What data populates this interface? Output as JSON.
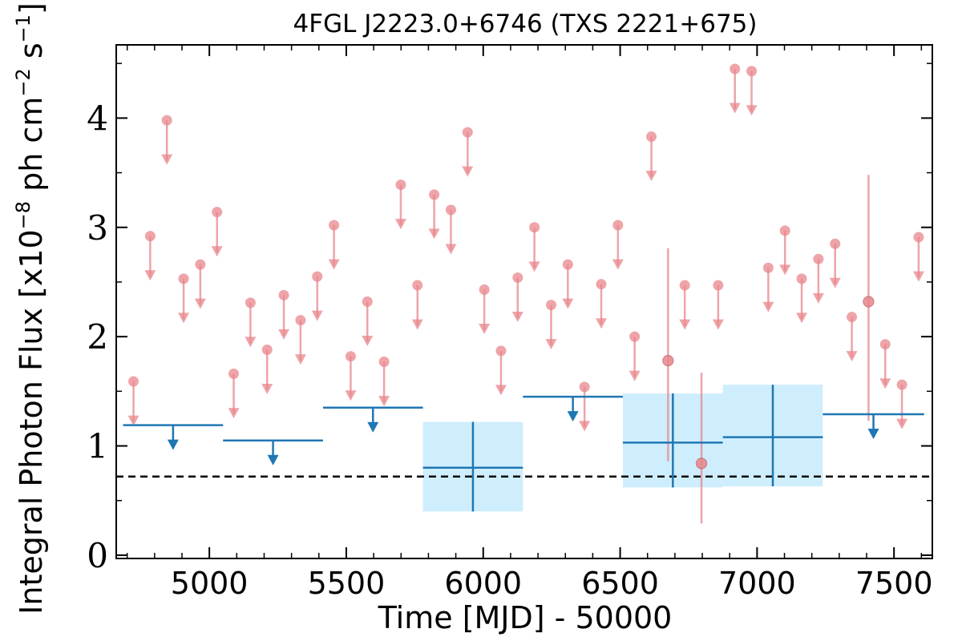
{
  "chart_data": {
    "type": "scatter",
    "title": "4FGL J2223.0+6746 (TXS 2221+675)",
    "xlabel": "Time [MJD] - 50000",
    "ylabel": "Integral Photon Flux [x10",
    "ylabel_exp1": "−8",
    "ylabel_mid": " ph cm",
    "ylabel_exp2": "−2",
    "ylabel_mid2": " s",
    "ylabel_exp3": "−1",
    "ylabel_end": "]",
    "xlim": [
      4660,
      7640
    ],
    "ylim": [
      -0.03,
      4.67
    ],
    "xticks": [
      5000,
      5500,
      6000,
      6500,
      7000,
      7500
    ],
    "yticks": [
      0,
      1,
      2,
      3,
      4
    ],
    "reference_line": {
      "y": 0.72,
      "style": "dashed",
      "color": "#000000"
    },
    "series": [
      {
        "color": "#e8868b",
        "upper_limits": [
          {
            "x": 4723,
            "y": 1.59
          },
          {
            "x": 4784,
            "y": 2.92
          },
          {
            "x": 4845,
            "y": 3.98
          },
          {
            "x": 4906,
            "y": 2.53
          },
          {
            "x": 4967,
            "y": 2.66
          },
          {
            "x": 5028,
            "y": 3.14
          },
          {
            "x": 5089,
            "y": 1.66
          },
          {
            "x": 5150,
            "y": 2.31
          },
          {
            "x": 5211,
            "y": 1.88
          },
          {
            "x": 5272,
            "y": 2.38
          },
          {
            "x": 5333,
            "y": 2.15
          },
          {
            "x": 5394,
            "y": 2.55
          },
          {
            "x": 5455,
            "y": 3.02
          },
          {
            "x": 5516,
            "y": 1.82
          },
          {
            "x": 5577,
            "y": 2.32
          },
          {
            "x": 5638,
            "y": 1.77
          },
          {
            "x": 5699,
            "y": 3.39
          },
          {
            "x": 5760,
            "y": 2.47
          },
          {
            "x": 5821,
            "y": 3.3
          },
          {
            "x": 5882,
            "y": 3.16
          },
          {
            "x": 5943,
            "y": 3.87
          },
          {
            "x": 6004,
            "y": 2.43
          },
          {
            "x": 6065,
            "y": 1.87
          },
          {
            "x": 6126,
            "y": 2.54
          },
          {
            "x": 6187,
            "y": 3.0
          },
          {
            "x": 6248,
            "y": 2.29
          },
          {
            "x": 6309,
            "y": 2.66
          },
          {
            "x": 6370,
            "y": 1.54
          },
          {
            "x": 6431,
            "y": 2.48
          },
          {
            "x": 6492,
            "y": 3.02
          },
          {
            "x": 6553,
            "y": 2.0
          },
          {
            "x": 6614,
            "y": 3.83
          },
          {
            "x": 6736,
            "y": 2.47
          },
          {
            "x": 6858,
            "y": 2.47
          },
          {
            "x": 6919,
            "y": 4.45
          },
          {
            "x": 6980,
            "y": 4.43
          },
          {
            "x": 7041,
            "y": 2.63
          },
          {
            "x": 7102,
            "y": 2.97
          },
          {
            "x": 7163,
            "y": 2.53
          },
          {
            "x": 7224,
            "y": 2.71
          },
          {
            "x": 7285,
            "y": 2.85
          },
          {
            "x": 7346,
            "y": 2.18
          },
          {
            "x": 7468,
            "y": 1.93
          },
          {
            "x": 7529,
            "y": 1.56
          },
          {
            "x": 7590,
            "y": 2.91
          }
        ],
        "detections": [
          {
            "x": 6675,
            "y": 1.78,
            "ylo": 0.86,
            "yhi": 2.81
          },
          {
            "x": 6797,
            "y": 0.84,
            "ylo": 0.29,
            "yhi": 1.67
          },
          {
            "x": 7407,
            "y": 2.32,
            "ylo": 1.23,
            "yhi": 3.48
          }
        ]
      },
      {
        "color": "#1f77b4",
        "band_color": "#cfeefd",
        "upper_limits": [
          {
            "x0": 4685,
            "x1": 5050,
            "y": 1.19
          },
          {
            "x0": 5050,
            "x1": 5415,
            "y": 1.05
          },
          {
            "x0": 5415,
            "x1": 5780,
            "y": 1.35
          },
          {
            "x0": 6145,
            "x1": 6510,
            "y": 1.45
          },
          {
            "x0": 7240,
            "x1": 7610,
            "y": 1.29
          }
        ],
        "detections": [
          {
            "x0": 5780,
            "x1": 6145,
            "y": 0.8,
            "ylo": 0.4,
            "yhi": 1.22
          },
          {
            "x0": 6510,
            "x1": 6875,
            "y": 1.03,
            "ylo": 0.62,
            "yhi": 1.48
          },
          {
            "x0": 6875,
            "x1": 7240,
            "y": 1.08,
            "ylo": 0.63,
            "yhi": 1.56
          }
        ]
      }
    ]
  }
}
